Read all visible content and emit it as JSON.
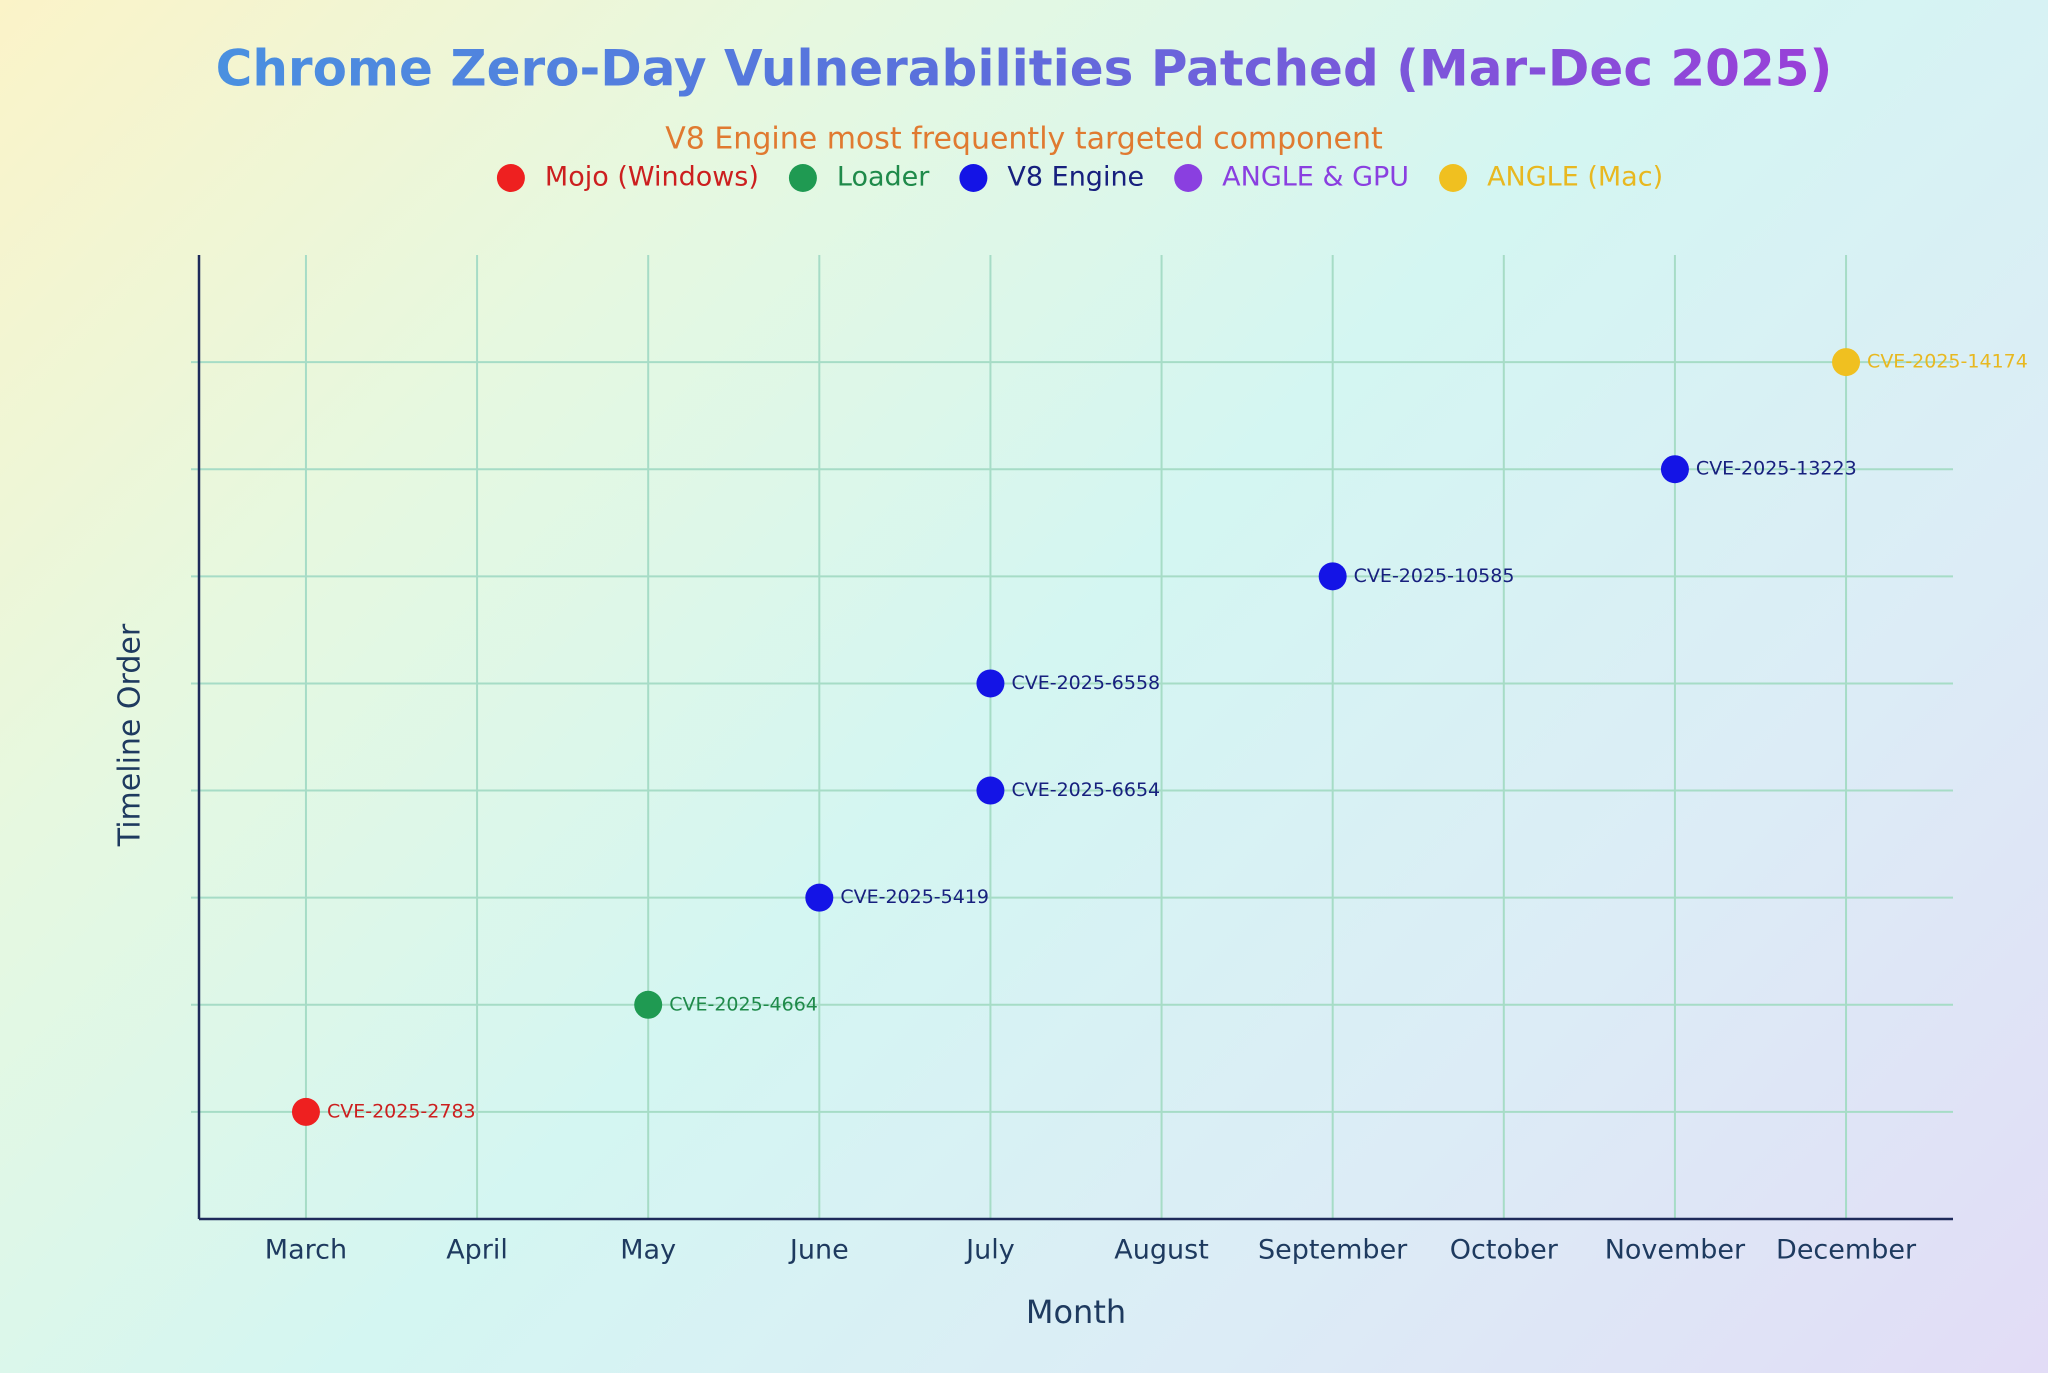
{
  "chart_data": {
    "type": "scatter",
    "title": "Chrome Zero-Day Vulnerabilities Patched (Mar-Dec 2025)",
    "subtitle": "V8 Engine most frequently targeted component",
    "x_label": "Month",
    "y_label": "Timeline Order",
    "categories": [
      "March",
      "April",
      "May",
      "June",
      "July",
      "August",
      "September",
      "October",
      "November",
      "December"
    ],
    "ylim": [
      0,
      9
    ],
    "yticks": [
      1,
      2,
      3,
      4,
      5,
      6,
      7,
      8
    ],
    "grid": true,
    "legend": "top",
    "series": [
      {
        "name": "Mojo (Windows)",
        "color": "#ee2020",
        "label_color": "#cc1f1f",
        "x": [
          "March"
        ],
        "values": [
          1
        ],
        "labels": [
          "CVE-2025-2783"
        ]
      },
      {
        "name": "Loader",
        "color": "#1f9a52",
        "label_color": "#1f8a4a",
        "x": [
          "May"
        ],
        "values": [
          2
        ],
        "labels": [
          "CVE-2025-4664"
        ]
      },
      {
        "name": "V8 Engine",
        "color": "#1414e6",
        "label_color": "#17207e",
        "x": [
          "June",
          "July",
          "July",
          "September",
          "November"
        ],
        "values": [
          3,
          4,
          5,
          6,
          7
        ],
        "labels": [
          "CVE-2025-5419",
          "CVE-2025-6654",
          "CVE-2025-6558",
          "CVE-2025-10585",
          "CVE-2025-13223"
        ]
      },
      {
        "name": "ANGLE & GPU",
        "color": "#8a3fe0",
        "label_color": "#8a3fe0",
        "x": [],
        "values": [],
        "labels": []
      },
      {
        "name": "ANGLE (Mac)",
        "color": "#f0c020",
        "label_color": "#e8b820",
        "x": [
          "December"
        ],
        "values": [
          8
        ],
        "labels": [
          "CVE-2025-14174"
        ]
      }
    ]
  }
}
